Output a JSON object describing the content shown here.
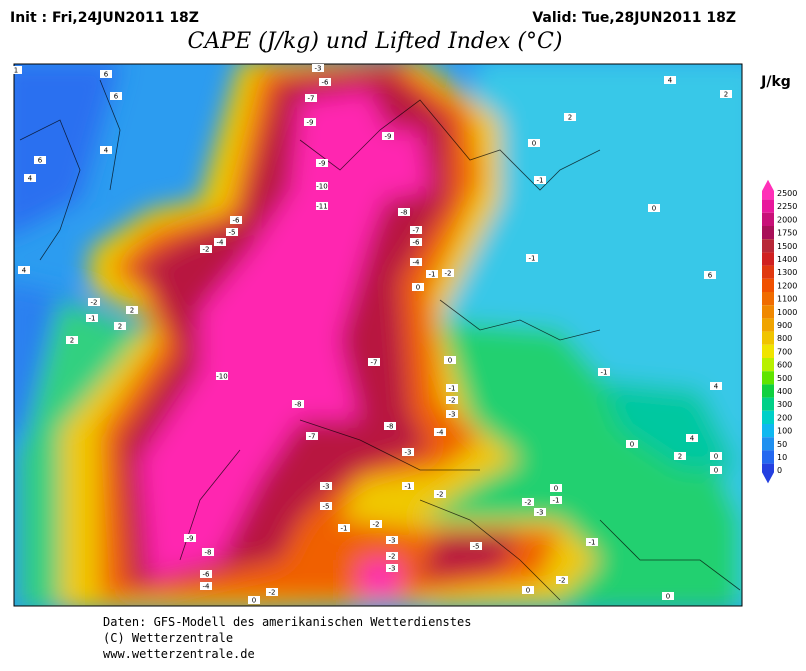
{
  "header": {
    "init": "Init : Fri,24JUN2011 18Z",
    "valid": "Valid: Tue,28JUN2011 18Z",
    "title": "CAPE (J/kg) und Lifted Index (°C)"
  },
  "map": {
    "lifted_index_labels": [
      -3,
      -6,
      -7,
      -9,
      -9,
      -9,
      -10,
      -11,
      -8,
      -6,
      -4,
      -2,
      -5,
      -7,
      -6,
      -4,
      -1,
      -2,
      0,
      -2,
      -1,
      2,
      2,
      -10,
      -7,
      0,
      -1,
      -2,
      -3,
      -4,
      -8,
      -7,
      -8,
      -3,
      -3,
      -5,
      -1,
      -2,
      -9,
      -8,
      -6,
      -4,
      -1,
      -2,
      -3,
      -2,
      -3,
      -5,
      -2,
      -3,
      0,
      -1,
      -1,
      -2,
      0,
      -2,
      0,
      0,
      -1,
      0,
      4,
      2,
      0,
      0,
      4,
      6,
      0,
      -1,
      -1,
      0,
      2,
      4,
      2,
      6,
      6,
      4,
      6,
      4,
      4,
      2,
      1
    ]
  },
  "legend": {
    "unit": "J/kg",
    "levels": [
      2500,
      2250,
      2000,
      1750,
      1500,
      1400,
      1300,
      1200,
      1100,
      1000,
      900,
      800,
      700,
      600,
      500,
      400,
      300,
      200,
      100,
      50,
      10,
      0
    ],
    "colors": [
      "#ff30b8",
      "#e8189c",
      "#c81078",
      "#a81058",
      "#b82838",
      "#d02020",
      "#e03810",
      "#f05000",
      "#f06c00",
      "#f08800",
      "#f0a400",
      "#f0c400",
      "#f0e400",
      "#b8f000",
      "#60e400",
      "#10d040",
      "#00d088",
      "#00d0c8",
      "#10b8f0",
      "#2090f0",
      "#2468f0",
      "#2440e0"
    ]
  },
  "footer": {
    "lines": [
      "Daten: GFS-Modell des amerikanischen Wetterdienstes",
      "(C) Wetterzentrale",
      "www.wetterzentrale.de"
    ]
  }
}
